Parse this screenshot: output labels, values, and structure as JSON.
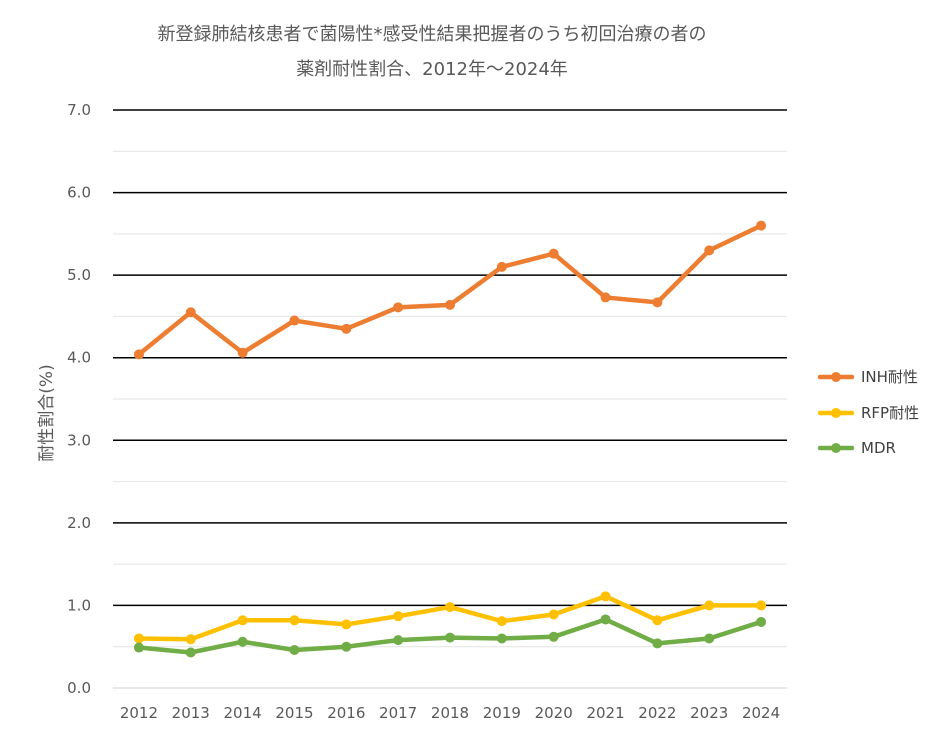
{
  "chart_data": {
    "type": "line",
    "title_lines": [
      "新登録肺結核患者で菌陽性*感受性結果把握者のうち初回治療の者の",
      "薬剤耐性割合、2012年～2024年"
    ],
    "xlabel": "",
    "ylabel": "耐性割合(%)",
    "ylim": [
      0,
      7
    ],
    "y_ticks": [
      "0.0",
      "1.0",
      "2.0",
      "3.0",
      "4.0",
      "5.0",
      "6.0",
      "7.0"
    ],
    "grid": true,
    "legend_position": "right",
    "categories": [
      "2012",
      "2013",
      "2014",
      "2015",
      "2016",
      "2017",
      "2018",
      "2019",
      "2020",
      "2021",
      "2022",
      "2023",
      "2024"
    ],
    "series": [
      {
        "name": "INH耐性",
        "color": "#ED7D31",
        "values": [
          4.04,
          4.55,
          4.06,
          4.45,
          4.35,
          4.61,
          4.64,
          5.1,
          5.26,
          4.73,
          4.67,
          5.3,
          5.6
        ]
      },
      {
        "name": "RFP耐性",
        "color": "#FFC000",
        "values": [
          0.6,
          0.59,
          0.82,
          0.82,
          0.77,
          0.87,
          0.98,
          0.81,
          0.89,
          1.11,
          0.82,
          1.0,
          1.0
        ]
      },
      {
        "name": "MDR",
        "color": "#70AD47",
        "values": [
          0.49,
          0.43,
          0.56,
          0.46,
          0.5,
          0.58,
          0.61,
          0.6,
          0.62,
          0.83,
          0.54,
          0.6,
          0.8
        ]
      }
    ]
  }
}
